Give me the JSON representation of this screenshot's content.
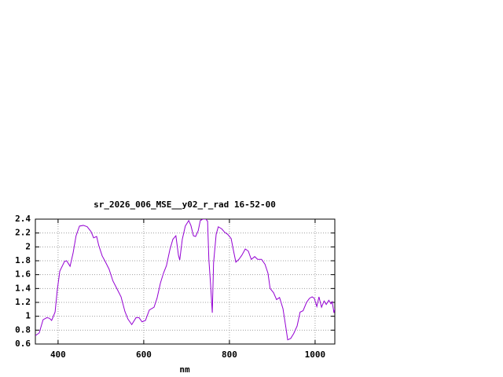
{
  "chart_data": {
    "type": "line",
    "title": "sr_2026_006_MSE__y02_r_rad 16-52-00",
    "x_label": "nm",
    "color": "#9400d3",
    "grid": true,
    "xlim": [
      347,
      1046
    ],
    "ylim": [
      0.6,
      2.4
    ],
    "xticks": [
      400,
      600,
      800,
      1000
    ],
    "yticks": [
      0.6,
      0.8,
      1,
      1.2,
      1.4,
      1.6,
      1.8,
      2,
      2.2,
      2.4
    ],
    "x": [
      347,
      356,
      365,
      374,
      380,
      385,
      393,
      398,
      404,
      415,
      420,
      428,
      435,
      442,
      450,
      459,
      468,
      477,
      483,
      490,
      495,
      503,
      510,
      519,
      528,
      538,
      547,
      556,
      563,
      572,
      582,
      589,
      596,
      604,
      613,
      624,
      631,
      639,
      646,
      653,
      661,
      668,
      675,
      681,
      684,
      690,
      697,
      705,
      710,
      716,
      721,
      727,
      732,
      738,
      745,
      749,
      752,
      756,
      760,
      763,
      769,
      774,
      782,
      789,
      796,
      804,
      809,
      815,
      822,
      829,
      837,
      844,
      851,
      859,
      866,
      875,
      883,
      890,
      895,
      903,
      910,
      917,
      925,
      932,
      936,
      943,
      950,
      958,
      965,
      972,
      980,
      987,
      993,
      998,
      1004,
      1009,
      1015,
      1021,
      1026,
      1032,
      1037,
      1040,
      1044,
      1046
    ],
    "values": [
      0.72,
      0.76,
      0.95,
      0.98,
      0.97,
      0.94,
      1.06,
      1.37,
      1.65,
      1.79,
      1.8,
      1.72,
      1.91,
      2.16,
      2.3,
      2.31,
      2.29,
      2.22,
      2.13,
      2.15,
      2.02,
      1.87,
      1.79,
      1.68,
      1.51,
      1.39,
      1.28,
      1.07,
      0.96,
      0.88,
      0.98,
      0.98,
      0.92,
      0.94,
      1.09,
      1.13,
      1.26,
      1.48,
      1.62,
      1.73,
      1.96,
      2.11,
      2.16,
      1.88,
      1.81,
      2.11,
      2.3,
      2.38,
      2.31,
      2.16,
      2.15,
      2.23,
      2.38,
      2.4,
      2.4,
      2.37,
      1.82,
      1.46,
      1.05,
      1.77,
      2.18,
      2.29,
      2.26,
      2.21,
      2.18,
      2.12,
      1.96,
      1.78,
      1.82,
      1.88,
      1.97,
      1.94,
      1.82,
      1.86,
      1.82,
      1.82,
      1.75,
      1.62,
      1.4,
      1.34,
      1.24,
      1.27,
      1.11,
      0.83,
      0.66,
      0.68,
      0.75,
      0.86,
      1.06,
      1.08,
      1.2,
      1.26,
      1.28,
      1.26,
      1.14,
      1.28,
      1.13,
      1.22,
      1.17,
      1.23,
      1.18,
      1.21,
      1.05,
      1.11
    ]
  }
}
